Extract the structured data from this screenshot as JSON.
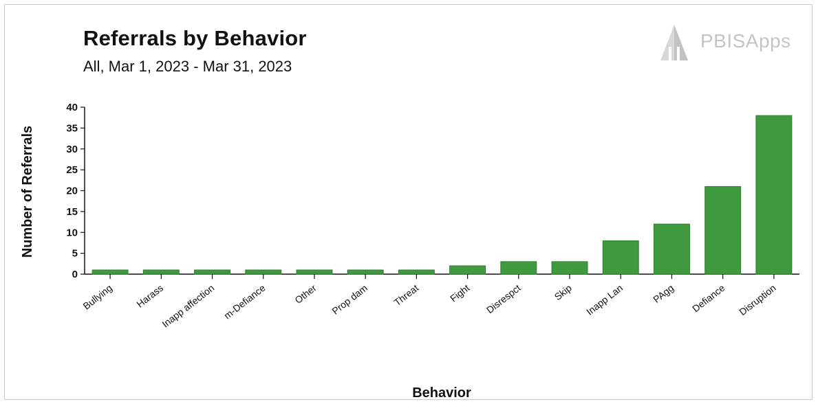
{
  "header": {
    "title": "Referrals by Behavior",
    "subtitle": "All, Mar 1, 2023 - Mar 31, 2023",
    "logo_text": "PBISApps"
  },
  "colors": {
    "bar": "#3f9a3f",
    "bar_dark": "#2f7e2f",
    "axis": "#111111",
    "grid": "#f2f2f2"
  },
  "chart_data": {
    "type": "bar",
    "title": "Referrals by Behavior",
    "subtitle": "All, Mar 1, 2023 - Mar 31, 2023",
    "xlabel": "Behavior",
    "ylabel": "Number of Referrals",
    "ylim": [
      0,
      40
    ],
    "yticks": [
      0,
      5,
      10,
      15,
      20,
      25,
      30,
      35,
      40
    ],
    "grid": false,
    "categories": [
      "Bullying",
      "Harass",
      "Inapp affection",
      "m-Defiance",
      "Other",
      "Prop dam",
      "Threat",
      "Fight",
      "Disrespct",
      "Skip",
      "Inapp Lan",
      "PAgg",
      "Defiance",
      "Disruption"
    ],
    "values": [
      1,
      1,
      1,
      1,
      1,
      1,
      1,
      2,
      3,
      3,
      8,
      12,
      21,
      38
    ]
  }
}
